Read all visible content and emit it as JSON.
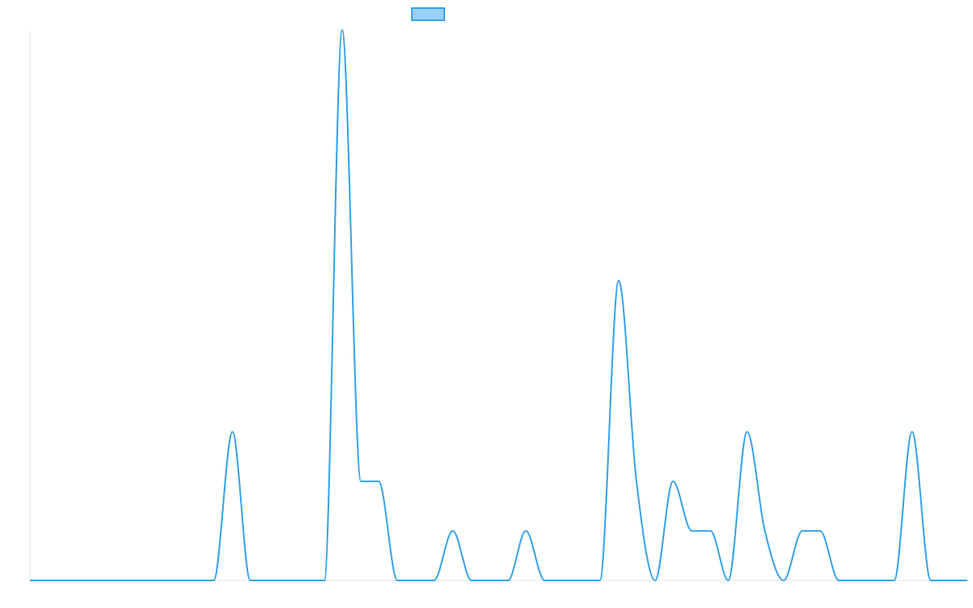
{
  "chart_data": {
    "type": "line",
    "title": "",
    "xlabel": "",
    "ylabel": "",
    "legend": {
      "placement": "top-center",
      "entries": [
        {
          "label": "",
          "swatch_color": "#9ad0f5",
          "border_color": "#36a2eb"
        }
      ]
    },
    "grid": false,
    "axes_visible": false,
    "xlim": [
      0,
      100
    ],
    "ylim": [
      0,
      1
    ],
    "series": [
      {
        "color": "#36a2eb",
        "line_width": 2,
        "fill": false,
        "points": [
          {
            "x": 0,
            "y": 0
          },
          {
            "x": 19.6,
            "y": 0
          },
          {
            "x": 21.6,
            "y": 0.27
          },
          {
            "x": 23.5,
            "y": 0
          },
          {
            "x": 31.4,
            "y": 0
          },
          {
            "x": 33.3,
            "y": 1.0
          },
          {
            "x": 35.3,
            "y": 0.18
          },
          {
            "x": 37.2,
            "y": 0.18
          },
          {
            "x": 39.2,
            "y": 0
          },
          {
            "x": 43.1,
            "y": 0
          },
          {
            "x": 45.1,
            "y": 0.09
          },
          {
            "x": 47.1,
            "y": 0
          },
          {
            "x": 51.0,
            "y": 0
          },
          {
            "x": 52.9,
            "y": 0.09
          },
          {
            "x": 54.9,
            "y": 0
          },
          {
            "x": 60.8,
            "y": 0
          },
          {
            "x": 62.8,
            "y": 0.545
          },
          {
            "x": 64.7,
            "y": 0.18
          },
          {
            "x": 66.7,
            "y": 0
          },
          {
            "x": 68.6,
            "y": 0.18
          },
          {
            "x": 70.6,
            "y": 0.09
          },
          {
            "x": 72.6,
            "y": 0.09
          },
          {
            "x": 74.5,
            "y": 0
          },
          {
            "x": 76.5,
            "y": 0.27
          },
          {
            "x": 78.4,
            "y": 0.09
          },
          {
            "x": 80.4,
            "y": 0
          },
          {
            "x": 82.4,
            "y": 0.09
          },
          {
            "x": 84.3,
            "y": 0.09
          },
          {
            "x": 86.3,
            "y": 0
          },
          {
            "x": 92.2,
            "y": 0
          },
          {
            "x": 94.1,
            "y": 0.27
          },
          {
            "x": 96.1,
            "y": 0
          },
          {
            "x": 100,
            "y": 0
          }
        ]
      }
    ]
  }
}
